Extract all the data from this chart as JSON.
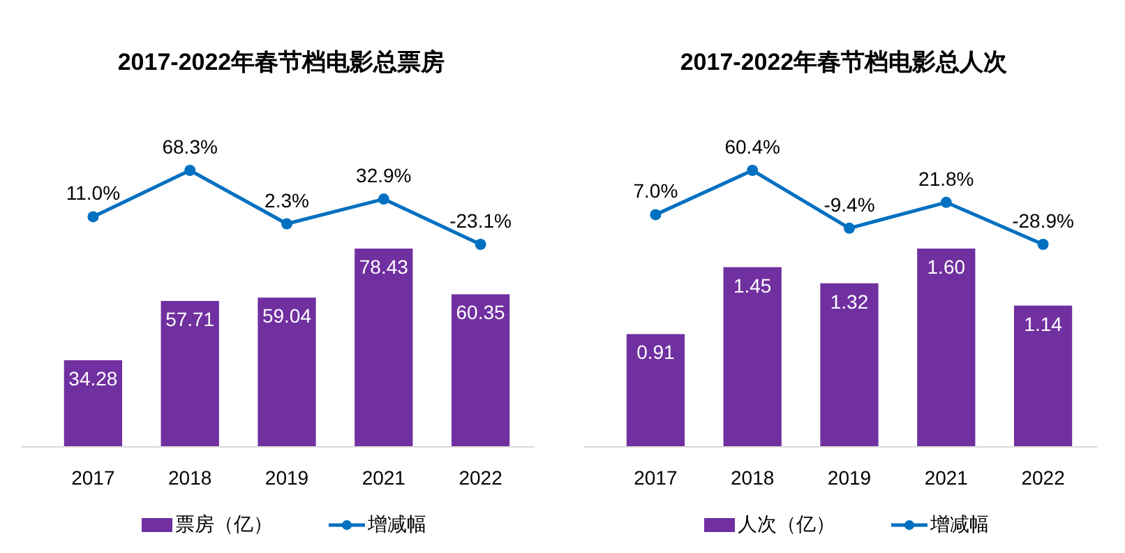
{
  "chart_data": [
    {
      "type": "bar",
      "categories": [
        "2017",
        "2018",
        "2019",
        "2021",
        "2022"
      ],
      "data_labels": true,
      "legend": "bottom",
      "series": [
        {
          "name": "票房（亿）",
          "color": "#7030a0",
          "values": [
            34.28,
            57.71,
            59.04,
            78.43,
            60.35
          ]
        }
      ]
    },
    {
      "type": "line",
      "title": "2017-2022年春节档电影总票房",
      "legend": "bottom",
      "marker": "circle",
      "series": [
        {
          "name": "增减幅",
          "color": "#0070c0",
          "values": [
            11.0,
            68.3,
            2.3,
            32.9,
            -23.1
          ],
          "value_labels": [
            "11.0%",
            "68.3%",
            "2.3%",
            "32.9%",
            "-23.1%"
          ]
        }
      ]
    },
    {
      "type": "bar",
      "categories": [
        "2017",
        "2018",
        "2019",
        "2021",
        "2022"
      ],
      "data_labels": true,
      "legend": "bottom",
      "series": [
        {
          "name": "人次（亿）",
          "color": "#7030a0",
          "values": [
            0.91,
            1.45,
            1.32,
            1.6,
            1.14
          ],
          "value_labels": [
            "0.91",
            "1.45",
            "1.32",
            "1.60",
            "1.14"
          ]
        }
      ]
    },
    {
      "type": "line",
      "title": "2017-2022年春节档电影总人次",
      "legend": "bottom",
      "marker": "circle",
      "series": [
        {
          "name": "增减幅",
          "color": "#0070c0",
          "values": [
            7.0,
            60.4,
            -9.4,
            21.8,
            -28.9
          ],
          "value_labels": [
            "7.0%",
            "60.4%",
            "-9.4%",
            "21.8%",
            "-28.9%"
          ]
        }
      ]
    }
  ]
}
